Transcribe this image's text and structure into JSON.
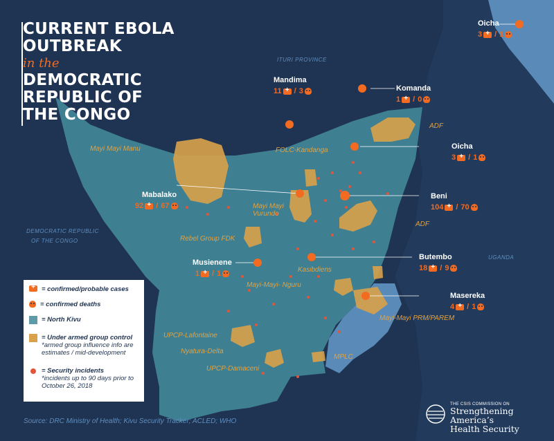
{
  "title": {
    "line1": "CURRENT EBOLA",
    "line2": "OUTBREAK",
    "line3": "in the",
    "line4": "DEMOCRATIC",
    "line5": "REPUBLIC OF",
    "line6": "THE CONGO"
  },
  "regions": {
    "ituri": "ITURI PROVINCE",
    "drc_line1": "DEMOCRATIC REPUBLIC",
    "drc_line2": "OF THE CONGO",
    "uganda": "UGANDA"
  },
  "towns": [
    {
      "name": "Oicha",
      "cases": "3",
      "deaths": "1"
    },
    {
      "name": "Mandima",
      "cases": "11",
      "deaths": "3"
    },
    {
      "name": "Komanda",
      "cases": "1",
      "deaths": "0"
    },
    {
      "name": "Oicha",
      "cases": "3",
      "deaths": "1"
    },
    {
      "name": "Mabalako",
      "cases": "92",
      "deaths": "67"
    },
    {
      "name": "Beni",
      "cases": "104",
      "deaths": "70"
    },
    {
      "name": "Butembo",
      "cases": "18",
      "deaths": "9"
    },
    {
      "name": "Musienene",
      "cases": "1",
      "deaths": "1"
    },
    {
      "name": "Masereka",
      "cases": "4",
      "deaths": "1"
    }
  ],
  "armed_groups": {
    "adf_north": "ADF",
    "mayi_mayi_manu": "Mayi Mayi Manu",
    "folc": "FOLC-Kandanga",
    "mayi_mayi_vurundo": "Mayi Mayi\nVurundo",
    "adf_south": "ADF",
    "fdk": "Rebel Group FDK",
    "kasibdiens": "Kasibdiens",
    "nguru": "Mayi-Mayi- Nguru",
    "prm": "Mayi-Mayi PRM/PAREM",
    "lafontaine": "UPCP-Lafontaine",
    "nyatura": "Nyatura-Delta",
    "damaceni": "UPCP-Damaceni",
    "mplc": "MPLC"
  },
  "legend": {
    "cases": "= confirmed/probable cases",
    "deaths": "= confirmed deaths",
    "north_kivu": "= North Kivu",
    "armed": "= Under armed group control",
    "armed_note": "*armed group influence info are estimates / mid-development",
    "security": "= Security incidents",
    "security_note": "*incidents up to 90 days prior to October 26, 2018"
  },
  "source": "Source: DRC Ministry of Health; Kivu Security Tracker; ACLED; WHO",
  "csis": {
    "small": "THE CSIS COMMISSION ON",
    "line1": "Strengthening America’s",
    "line2": "Health Security"
  },
  "colors": {
    "background": "#1f3352",
    "north_kivu": "#3f7f92",
    "uganda_lake": "#5a8bb8",
    "armed": "#d9a24a",
    "accent": "#f26b21"
  }
}
